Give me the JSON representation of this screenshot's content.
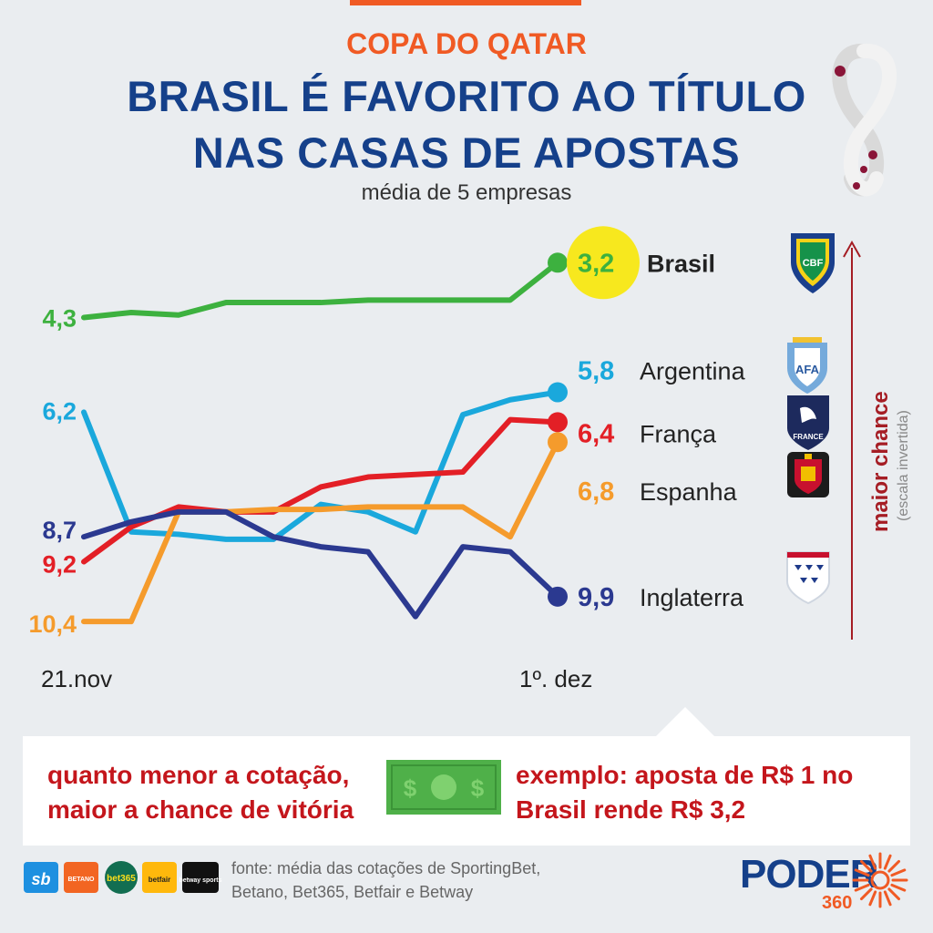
{
  "header": {
    "kicker": "COPA DO QATAR",
    "title_line1": "BRASIL É FAVORITO AO TÍTULO",
    "title_line2": "NAS CASAS DE APOSTAS",
    "subtitle": "média de 5 empresas"
  },
  "chart_data": {
    "type": "line",
    "x_start_label": "21.nov",
    "x_end_label": "1º. dez",
    "ylim": [
      2.5,
      11
    ],
    "y_inverted": true,
    "grid": false,
    "axis_note": "maior chance",
    "axis_note_sub": "(escala invertida)",
    "series": [
      {
        "name": "Brasil",
        "color": "#3db13f",
        "start_label": "4,3",
        "end_label": "3,2",
        "values": [
          4.3,
          4.2,
          4.25,
          4.0,
          4.0,
          4.0,
          3.95,
          3.95,
          3.95,
          3.95,
          3.2
        ]
      },
      {
        "name": "Argentina",
        "color": "#1aa8dc",
        "start_label": "6,2",
        "end_label": "5,8",
        "values": [
          6.2,
          8.6,
          8.65,
          8.75,
          8.75,
          8.05,
          8.2,
          8.6,
          6.25,
          5.95,
          5.8
        ]
      },
      {
        "name": "França",
        "color": "#e31f26",
        "start_label": "9,2",
        "end_label": "6,4",
        "values": [
          9.2,
          8.5,
          8.1,
          8.2,
          8.2,
          7.7,
          7.5,
          7.45,
          7.4,
          6.35,
          6.4
        ]
      },
      {
        "name": "Espanha",
        "color": "#f59b2c",
        "start_label": "10,4",
        "end_label": "6,8",
        "values": [
          10.4,
          10.4,
          8.2,
          8.2,
          8.15,
          8.15,
          8.1,
          8.1,
          8.1,
          8.7,
          6.8
        ]
      },
      {
        "name": "Inglaterra",
        "color": "#2b3990",
        "start_label": "8,7",
        "end_label": "9,9",
        "values": [
          8.7,
          8.4,
          8.2,
          8.2,
          8.7,
          8.9,
          9.0,
          10.3,
          8.9,
          9.0,
          9.9
        ]
      }
    ],
    "highlight_series": "Brasil",
    "highlight_color": "#f7e81e"
  },
  "note": {
    "left_line1": "quanto menor a cotação,",
    "left_line2": "maior a chance de vitória",
    "right_line1": "exemplo: aposta de R$ 1 no",
    "right_line2": "Brasil rende R$ 3,2"
  },
  "footer": {
    "source_line1": "fonte: média das cotações de SportingBet,",
    "source_line2": "Betano, Bet365, Betfair e Betway",
    "brand": "PODER",
    "brand_sub": "360",
    "logos": [
      "sb",
      "BETANO",
      "bet365",
      "betfair",
      "betway sports"
    ]
  },
  "icons": {
    "trophy": "world-cup-logo-icon",
    "crests": [
      "cbf-crest-icon",
      "afa-crest-icon",
      "fff-crest-icon",
      "rfef-crest-icon",
      "england-crest-icon"
    ],
    "money": "banknote-icon"
  },
  "colors": {
    "brand_blue": "#15408a",
    "brand_orange": "#f05a24",
    "note_red": "#c4161c"
  }
}
